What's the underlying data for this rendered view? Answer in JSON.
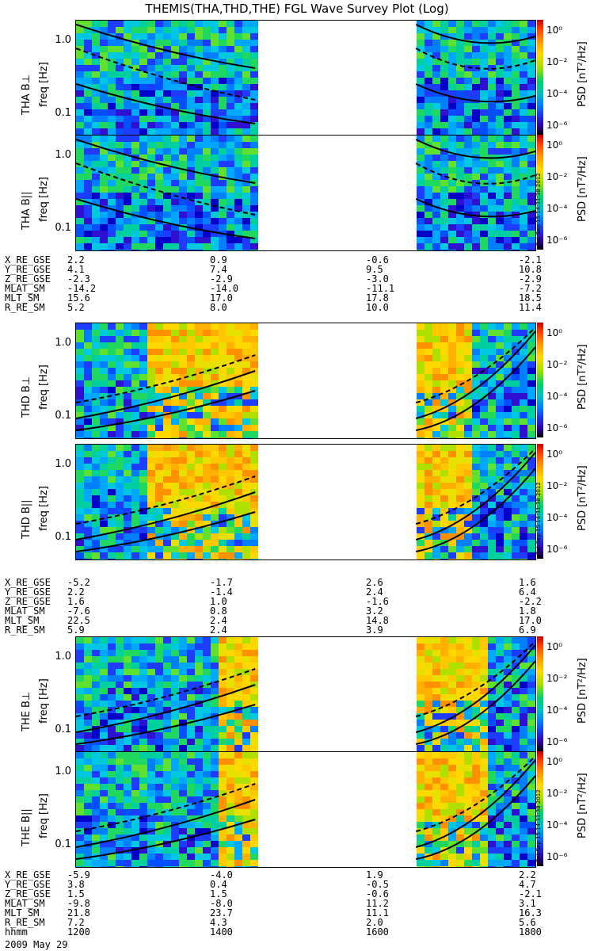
{
  "title": "THEMIS(THA,THD,THE) FGL Wave Survey Plot (Log)",
  "panels": [
    {
      "label": "THA B⊥",
      "tone": "low",
      "gap": [
        0.39,
        0.74
      ],
      "burst": []
    },
    {
      "label": "THA B||",
      "tone": "low",
      "gap": [
        0.39,
        0.74
      ],
      "burst": []
    },
    {
      "label": "THD B⊥",
      "tone": "mid",
      "gap": [
        0.39,
        0.74
      ],
      "burst": [
        [
          0.14,
          0.39
        ],
        [
          0.74,
          0.86
        ]
      ]
    },
    {
      "label": "THD B||",
      "tone": "mid",
      "gap": [
        0.39,
        0.74
      ],
      "burst": [
        [
          0.14,
          0.39
        ],
        [
          0.74,
          0.86
        ]
      ]
    },
    {
      "label": "THE B⊥",
      "tone": "mid",
      "gap": [
        0.39,
        0.74
      ],
      "burst": [
        [
          0.3,
          0.39
        ],
        [
          0.74,
          0.88
        ]
      ]
    },
    {
      "label": "THE B||",
      "tone": "mid",
      "gap": [
        0.39,
        0.74
      ],
      "burst": [
        [
          0.3,
          0.39
        ],
        [
          0.74,
          0.88
        ]
      ]
    }
  ],
  "freq_label": "freq [Hz]",
  "freq_ticks": [
    "1.0",
    "0.1"
  ],
  "colorbar": {
    "label": "PSD [nT²/Hz]",
    "ticks": [
      "10⁰",
      "10⁻²",
      "10⁻⁴",
      "10⁻⁶"
    ],
    "stamp": "Sat Sep 15 14:31:38 2012"
  },
  "ephemeris": [
    {
      "rows": [
        {
          "name": "X_RE_GSE",
          "values": [
            "2.2",
            "0.9",
            "-0.6",
            "-2.1"
          ]
        },
        {
          "name": "Y_RE_GSE",
          "values": [
            "4.1",
            "7.4",
            "9.5",
            "10.8"
          ]
        },
        {
          "name": "Z_RE_GSE",
          "values": [
            "-2.3",
            "-2.9",
            "-3.0",
            "-2.9"
          ]
        },
        {
          "name": "MLAT_SM",
          "values": [
            "-14.2",
            "-14.0",
            "-11.1",
            "-7.2"
          ]
        },
        {
          "name": "MLT_SM",
          "values": [
            "15.6",
            "17.0",
            "17.8",
            "18.5"
          ]
        },
        {
          "name": "R_RE_SM",
          "values": [
            "5.2",
            "8.0",
            "10.0",
            "11.4"
          ]
        }
      ]
    },
    {
      "rows": [
        {
          "name": "X_RE_GSE",
          "values": [
            "-5.2",
            "-1.7",
            "2.6",
            "1.6"
          ]
        },
        {
          "name": "Y_RE_GSE",
          "values": [
            "2.2",
            "-1.4",
            "2.4",
            "6.4"
          ]
        },
        {
          "name": "Z_RE_GSE",
          "values": [
            "1.6",
            "1.0",
            "-1.6",
            "-2.2"
          ]
        },
        {
          "name": "MLAT_SM",
          "values": [
            "-7.6",
            "0.8",
            "3.2",
            "1.8"
          ]
        },
        {
          "name": "MLT_SM",
          "values": [
            "22.5",
            "2.4",
            "14.8",
            "17.0"
          ]
        },
        {
          "name": "R_RE_SM",
          "values": [
            "5.9",
            "2.4",
            "3.9",
            "6.9"
          ]
        }
      ]
    },
    {
      "rows": [
        {
          "name": "X_RE_GSE",
          "values": [
            "-5.9",
            "-4.0",
            "1.9",
            "2.2"
          ]
        },
        {
          "name": "Y_RE_GSE",
          "values": [
            "3.8",
            "0.4",
            "-0.5",
            "4.7"
          ]
        },
        {
          "name": "Z_RE_GSE",
          "values": [
            "1.5",
            "1.5",
            "-0.6",
            "-2.1"
          ]
        },
        {
          "name": "MLAT_SM",
          "values": [
            "-9.8",
            "-8.0",
            "11.2",
            "3.1"
          ]
        },
        {
          "name": "MLT_SM",
          "values": [
            "21.8",
            "23.7",
            "11.1",
            "16.3"
          ]
        },
        {
          "name": "R_RE_SM",
          "values": [
            "7.2",
            "4.3",
            "2.0",
            "5.6"
          ]
        },
        {
          "name": "hhmm",
          "values": [
            "1200",
            "1400",
            "1600",
            "1800"
          ]
        }
      ]
    }
  ],
  "date": "2009 May 29",
  "chart_data": {
    "type": "heatmap",
    "title": "THEMIS(THA,THD,THE) FGL Wave Survey Plot (Log)",
    "x_ticks": [
      "1200",
      "1400",
      "1600",
      "1800"
    ],
    "xlabel": "hhmm",
    "ylabel": "freq [Hz]",
    "y_scale": "log",
    "ylim": [
      0.05,
      1.6
    ],
    "colorbar_label": "PSD [nT²/Hz]",
    "colorbar_scale": "log",
    "colorbar_range": [
      1e-06,
      10
    ],
    "panels": [
      "THA B⊥",
      "THA B||",
      "THD B⊥",
      "THD B||",
      "THE B⊥",
      "THE B||"
    ],
    "data_gap": [
      "~1450",
      "~1620"
    ]
  }
}
